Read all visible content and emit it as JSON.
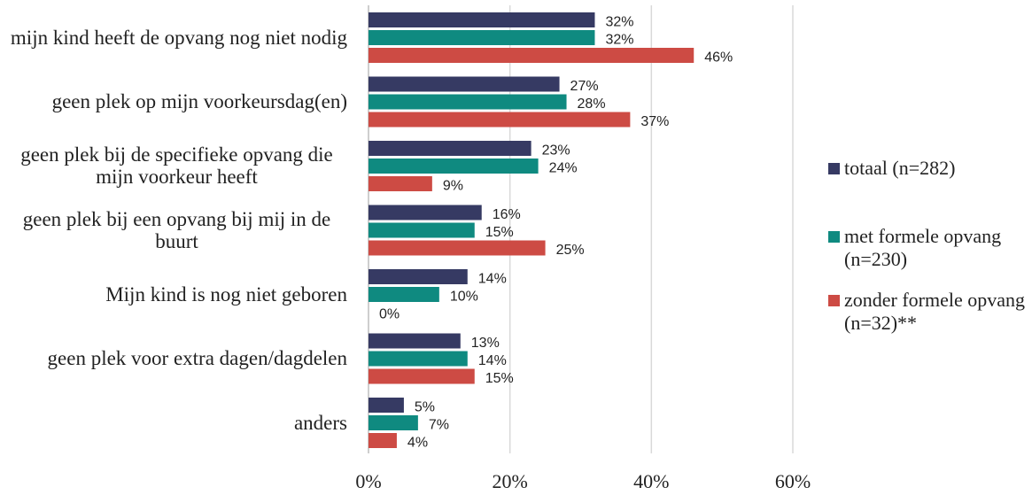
{
  "chart_data": {
    "type": "hbar",
    "categories": [
      "mijn kind heeft de opvang nog niet nodig",
      "geen plek op mijn voorkeursdag(en)",
      "geen plek bij de specifieke opvang die mijn voorkeur heeft",
      "geen plek bij een opvang bij mij in de buurt",
      "Mijn kind is nog niet geboren",
      "geen plek voor extra dagen/dagdelen",
      "anders"
    ],
    "series": [
      {
        "name": "totaal (n=282)",
        "color": "#363a63",
        "values": [
          32,
          27,
          23,
          16,
          14,
          13,
          5
        ],
        "value_labels": [
          "32%",
          "27%",
          "23%",
          "16%",
          "14%",
          "13%",
          "5%"
        ]
      },
      {
        "name": "met formele opvang (n=230)",
        "color": "#0f8a80",
        "values": [
          32,
          28,
          24,
          15,
          10,
          14,
          7
        ],
        "value_labels": [
          "32%",
          "28%",
          "24%",
          "15%",
          "10%",
          "14%",
          "7%"
        ]
      },
      {
        "name": "zonder formele opvang (n=32)**",
        "color": "#cd4b44",
        "values": [
          46,
          37,
          9,
          25,
          0,
          15,
          4
        ],
        "value_labels": [
          "46%",
          "37%",
          "9%",
          "25%",
          "0%",
          "15%",
          "4%"
        ]
      }
    ],
    "xlim": [
      0,
      60
    ],
    "xticks": [
      {
        "value": 0,
        "label": "0%"
      },
      {
        "value": 20,
        "label": "20%"
      },
      {
        "value": 40,
        "label": "40%"
      },
      {
        "value": 60,
        "label": "60%"
      }
    ],
    "grid": true,
    "legend": "right"
  }
}
